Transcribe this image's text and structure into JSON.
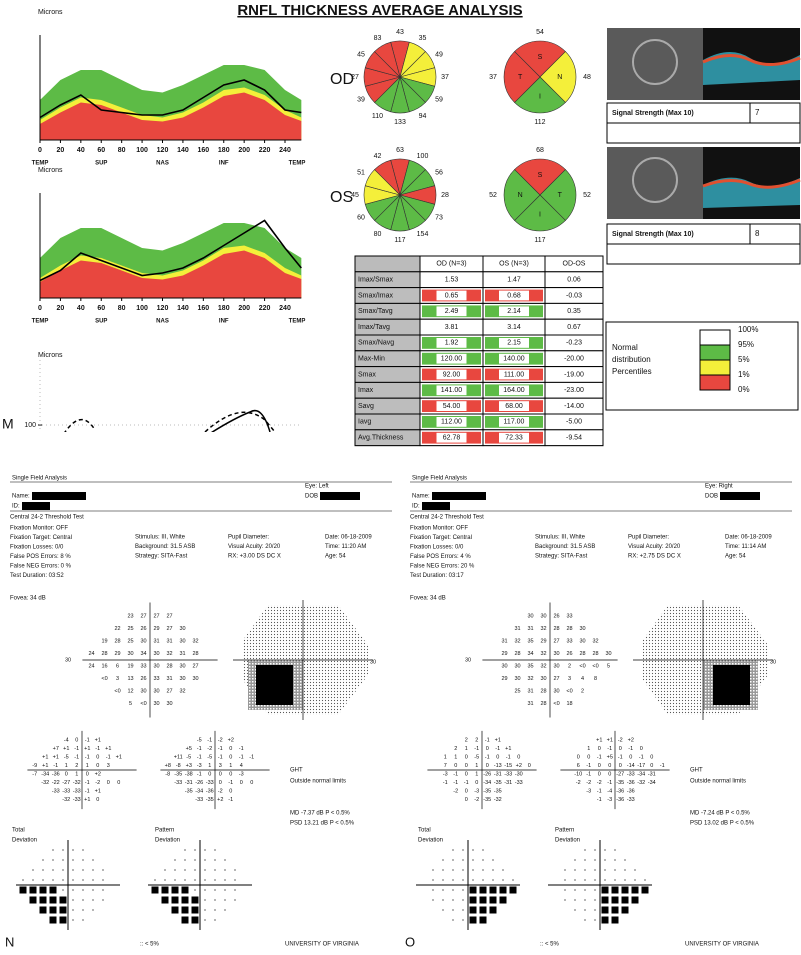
{
  "panel_m": {
    "label": "M",
    "title": "RNFL THICKNESS AVERAGE ANALYSIS",
    "graphs": [
      {
        "type": "area-line",
        "y_label": "Microns",
        "ylim": [
          0,
          200
        ],
        "xlim": [
          0,
          256
        ],
        "xticks": [
          0,
          20,
          40,
          60,
          80,
          100,
          120,
          140,
          160,
          180,
          200,
          220,
          240
        ],
        "sector_labels": [
          "TEMP",
          "SUP",
          "NAS",
          "INF",
          "TEMP"
        ],
        "x": [
          0,
          20,
          40,
          60,
          80,
          100,
          120,
          140,
          160,
          180,
          200,
          220,
          240,
          256
        ],
        "bands": [
          {
            "color": "#5dbb46",
            "values": [
              80,
              120,
              140,
              140,
              120,
              100,
              95,
              110,
              130,
              150,
              150,
              140,
              100,
              80
            ]
          },
          {
            "color": "#f4ef3a",
            "values": [
              40,
              65,
              85,
              80,
              65,
              50,
              45,
              55,
              75,
              100,
              105,
              90,
              60,
              45
            ]
          },
          {
            "color": "#e8473f",
            "values": [
              32,
              55,
              75,
              70,
              55,
              40,
              37,
              45,
              65,
              88,
              95,
              80,
              50,
              38
            ]
          }
        ],
        "series": [
          {
            "color": "#000000",
            "values": [
              45,
              70,
              90,
              60,
              55,
              50,
              50,
              60,
              85,
              110,
              120,
              100,
              60,
              55
            ]
          }
        ]
      },
      {
        "type": "area-line",
        "y_label": "Microns",
        "ylim": [
          0,
          200
        ],
        "xlim": [
          0,
          256
        ],
        "xticks": [
          0,
          20,
          40,
          60,
          80,
          100,
          120,
          140,
          160,
          180,
          200,
          220,
          240
        ],
        "sector_labels": [
          "TEMP",
          "SUP",
          "NAS",
          "INF",
          "TEMP"
        ],
        "x": [
          0,
          20,
          40,
          60,
          80,
          100,
          120,
          140,
          160,
          180,
          200,
          220,
          240,
          256
        ],
        "bands": [
          {
            "color": "#5dbb46",
            "values": [
              80,
              120,
              140,
              140,
              120,
              100,
              95,
              110,
              130,
              150,
              150,
              140,
              100,
              80
            ]
          },
          {
            "color": "#f4ef3a",
            "values": [
              40,
              65,
              85,
              80,
              65,
              50,
              45,
              55,
              75,
              100,
              105,
              90,
              60,
              45
            ]
          },
          {
            "color": "#e8473f",
            "values": [
              32,
              55,
              75,
              70,
              55,
              40,
              37,
              45,
              65,
              88,
              95,
              80,
              50,
              38
            ]
          }
        ],
        "series": [
          {
            "color": "#000000",
            "values": [
              35,
              55,
              90,
              75,
              60,
              45,
              50,
              60,
              80,
              105,
              130,
              155,
              100,
              60
            ]
          }
        ]
      },
      {
        "type": "partial",
        "y_label": "Microns",
        "yticks": [
          100
        ]
      }
    ],
    "eyes": [
      {
        "label": "OD",
        "clock": [
          43,
          35,
          49,
          37,
          59,
          94,
          133,
          110,
          39,
          27,
          45,
          83
        ],
        "clock_colors": [
          "#e8473f",
          "#f4ef3a",
          "#f4ef3a",
          "#f4ef3a",
          "#5dbb46",
          "#5dbb46",
          "#5dbb46",
          "#5dbb46",
          "#e8473f",
          "#e8473f",
          "#e8473f",
          "#e8473f"
        ],
        "quadrants": [
          {
            "name": "S",
            "value": 54,
            "color": "#e8473f"
          },
          {
            "name": "N",
            "value": 48,
            "color": "#f4ef3a"
          },
          {
            "name": "I",
            "value": 112,
            "color": "#5dbb46"
          },
          {
            "name": "T",
            "value": 37,
            "color": "#e8473f"
          }
        ],
        "signal": {
          "label": "Signal Strength (Max 10)",
          "value": 7
        }
      },
      {
        "label": "OS",
        "clock": [
          63,
          100,
          56,
          28,
          73,
          154,
          117,
          80,
          60,
          45,
          51,
          42
        ],
        "clock_colors": [
          "#e8473f",
          "#5dbb46",
          "#5dbb46",
          "#e8473f",
          "#5dbb46",
          "#5dbb46",
          "#5dbb46",
          "#5dbb46",
          "#5dbb46",
          "#f4ef3a",
          "#f4ef3a",
          "#e8473f"
        ],
        "quadrants": [
          {
            "name": "S",
            "value": 68,
            "color": "#e8473f"
          },
          {
            "name": "T",
            "value": 52,
            "color": "#5dbb46"
          },
          {
            "name": "I",
            "value": 117,
            "color": "#5dbb46"
          },
          {
            "name": "N",
            "value": 52,
            "color": "#5dbb46"
          }
        ],
        "signal": {
          "label": "Signal Strength (Max 10)",
          "value": 8
        }
      }
    ],
    "table": {
      "header": [
        "OD (N=3)",
        "OS (N=3)",
        "OD-OS"
      ],
      "rows": [
        {
          "label": "Imax/Smax",
          "cells": [
            "1.53",
            "1.47",
            "0.06"
          ],
          "colors": [
            "#ffffff",
            "#ffffff",
            "#ffffff"
          ]
        },
        {
          "label": "Smax/Imax",
          "cells": [
            "0.65",
            "0.68",
            "-0.03"
          ],
          "colors": [
            "#e8473f",
            "#e8473f",
            "#ffffff"
          ]
        },
        {
          "label": "Smax/Tavg",
          "cells": [
            "2.49",
            "2.14",
            "0.35"
          ],
          "colors": [
            "#5dbb46",
            "#5dbb46",
            "#ffffff"
          ]
        },
        {
          "label": "Imax/Tavg",
          "cells": [
            "3.81",
            "3.14",
            "0.67"
          ],
          "colors": [
            "#ffffff",
            "#ffffff",
            "#ffffff"
          ]
        },
        {
          "label": "Smax/Navg",
          "cells": [
            "1.92",
            "2.15",
            "-0.23"
          ],
          "colors": [
            "#5dbb46",
            "#5dbb46",
            "#ffffff"
          ]
        },
        {
          "label": "Max-Min",
          "cells": [
            "120.00",
            "140.00",
            "-20.00"
          ],
          "colors": [
            "#5dbb46",
            "#5dbb46",
            "#ffffff"
          ]
        },
        {
          "label": "Smax",
          "cells": [
            "92.00",
            "111.00",
            "-19.00"
          ],
          "colors": [
            "#e8473f",
            "#e8473f",
            "#ffffff"
          ]
        },
        {
          "label": "Imax",
          "cells": [
            "141.00",
            "164.00",
            "-23.00"
          ],
          "colors": [
            "#5dbb46",
            "#5dbb46",
            "#ffffff"
          ]
        },
        {
          "label": "Savg",
          "cells": [
            "54.00",
            "68.00",
            "-14.00"
          ],
          "colors": [
            "#e8473f",
            "#e8473f",
            "#ffffff"
          ]
        },
        {
          "label": "Iavg",
          "cells": [
            "112.00",
            "117.00",
            "-5.00"
          ],
          "colors": [
            "#5dbb46",
            "#5dbb46",
            "#ffffff"
          ]
        },
        {
          "label": "Avg.Thickness",
          "cells": [
            "62.78",
            "72.33",
            "-9.54"
          ],
          "colors": [
            "#e8473f",
            "#e8473f",
            "#ffffff"
          ]
        }
      ]
    },
    "legend": {
      "title": [
        "Normal",
        "distribution",
        "Percentiles"
      ],
      "items": [
        {
          "label": "100%",
          "color": "#ffffff"
        },
        {
          "label": "95%",
          "color": "#5dbb46"
        },
        {
          "label": "5%",
          "color": "#f4ef3a"
        },
        {
          "label": "1%",
          "color": "#e8473f"
        },
        {
          "label": "0%",
          "color": null
        }
      ]
    }
  },
  "panels": [
    {
      "label": "N",
      "title": "Single Field Analysis",
      "eye": "Eye: Left",
      "name": "Name:",
      "id": "ID:",
      "dob": "DOB",
      "test": "Central 24-2 Threshold Test",
      "left_info": [
        "Fixation Monitor: OFF",
        "Fixation Target: Central",
        "Fixation Losses: 0/0",
        "False POS Errors:  8 %",
        "False NEG Errors:  0 %",
        "Test Duration: 03:52"
      ],
      "fovea": "Fovea: 34 dB",
      "mid_info": [
        "Stimulus: III, White",
        "Background: 31.5 ASB",
        "Strategy: SITA-Fast"
      ],
      "pupil_info": [
        "Pupil Diameter:",
        "Visual Acuity: 20/20",
        "RX: +3.00 DS    DC  X"
      ],
      "date_info": [
        "Date: 06-18-2009",
        "Time: 11:20 AM",
        "Age: 54"
      ],
      "axis_label": "30",
      "threshold": [
        [
          "23",
          "27",
          "27",
          "27"
        ],
        [
          "22",
          "25",
          "26",
          "29",
          "27",
          "30"
        ],
        [
          "19",
          "28",
          "25",
          "30",
          "31",
          "31",
          "30",
          "32"
        ],
        [
          "24",
          "28",
          "29",
          "30",
          "34",
          "30",
          "32",
          "31",
          "28"
        ],
        [
          "24",
          "16",
          "6",
          "19",
          "33",
          "30",
          "28",
          "30",
          "27"
        ],
        [
          "<0",
          "3",
          "13",
          "26",
          "33",
          "31",
          "30",
          "30"
        ],
        [
          "<0",
          "12",
          "30",
          "30",
          "27",
          "32"
        ],
        [
          "5",
          "<0",
          "30",
          "30"
        ]
      ],
      "total_deviation": {
        "label": [
          "Total",
          "Deviation"
        ],
        "rows": [
          [
            "-4",
            "0",
            "-1",
            "+1"
          ],
          [
            "+7",
            "+1",
            "-1",
            "+1",
            "-1",
            "+1"
          ],
          [
            "+1",
            "+1",
            "-5",
            "-1",
            "-1",
            "0",
            "-1",
            "+1"
          ],
          [
            "-9",
            "+1",
            "-1",
            "1",
            "2",
            "1",
            "0",
            "3"
          ],
          [
            "-7",
            "-34",
            "-36",
            "0",
            "1",
            "0",
            "+2"
          ],
          [
            "-32",
            "-22",
            "-27",
            "-32",
            "-1",
            "-2",
            "0",
            "0"
          ],
          [
            "-33",
            "-33",
            "-33",
            "-1",
            "+1"
          ],
          [
            "-32",
            "-33",
            "+1",
            "0"
          ]
        ]
      },
      "pattern_deviation": {
        "label": [
          "Pattern",
          "Deviation"
        ],
        "rows": [
          [
            "-5",
            "-1",
            "-2",
            "+2"
          ],
          [
            "+5",
            "-1",
            "-2",
            "-1",
            "0",
            "-1"
          ],
          [
            "+11",
            "-5",
            "-1",
            "-5",
            "-1",
            "0",
            "-1",
            "-1"
          ],
          [
            "+8",
            "-8",
            "+3",
            "-3",
            "1",
            "3",
            "1",
            "4"
          ],
          [
            "-8",
            "-35",
            "-38",
            "-1",
            "0",
            "0",
            "0",
            "-3"
          ],
          [
            "-33",
            "-31",
            "-26",
            "-33",
            "0",
            "-1",
            "0",
            "0"
          ],
          [
            "-35",
            "-34",
            "-36",
            "-2",
            "0"
          ],
          [
            "-33",
            "-35",
            "+2",
            "-1"
          ]
        ]
      },
      "ght": [
        "GHT",
        "Outside normal limits"
      ],
      "md": "MD    -7.37 dB  P < 0.5%",
      "psd": "PSD   13.21 dB  P < 0.5%",
      "legend": ":: < 5%",
      "institution": "UNIVERSITY OF VIRGINIA"
    },
    {
      "label": "O",
      "title": "Single Field Analysis",
      "eye": "Eye: Right",
      "name": "Name:",
      "id": "ID:",
      "dob": "DOB",
      "test": "Central 24-2 Threshold Test",
      "left_info": [
        "Fixation Monitor: OFF",
        "Fixation Target: Central",
        "Fixation Losses: 0/0",
        "False POS Errors:  4 %",
        "False NEG Errors: 20 %",
        "Test Duration: 03:17"
      ],
      "fovea": "Fovea: 34 dB",
      "mid_info": [
        "Stimulus: III, White",
        "Background: 31.5 ASB",
        "Strategy: SITA-Fast"
      ],
      "pupil_info": [
        "Pupil Diameter:",
        "Visual Acuity: 20/20",
        "RX: +2.75 DS    DC  X"
      ],
      "date_info": [
        "Date: 06-18-2009",
        "Time: 11:14 AM",
        "Age: 54"
      ],
      "axis_label": "30",
      "threshold": [
        [
          "30",
          "30",
          "26",
          "33"
        ],
        [
          "31",
          "31",
          "32",
          "28",
          "28",
          "30"
        ],
        [
          "31",
          "32",
          "35",
          "29",
          "27",
          "33",
          "30",
          "32"
        ],
        [
          "29",
          "28",
          "34",
          "32",
          "30",
          "26",
          "28",
          "28",
          "30"
        ],
        [
          "30",
          "30",
          "35",
          "32",
          "30",
          "2",
          "<0",
          "<0",
          "5"
        ],
        [
          "29",
          "30",
          "32",
          "30",
          "27",
          "3",
          "4",
          "8"
        ],
        [
          "25",
          "31",
          "28",
          "30",
          "<0",
          "2"
        ],
        [
          "31",
          "28",
          "<0",
          "18"
        ]
      ],
      "total_deviation": {
        "label": [
          "Total",
          "Deviation"
        ],
        "rows": [
          [
            "2",
            "2",
            "-1",
            "+1"
          ],
          [
            "2",
            "1",
            "-1",
            "0",
            "-1",
            "+1"
          ],
          [
            "1",
            "1",
            "0",
            "-5",
            "-1",
            "0",
            "-1",
            "0"
          ],
          [
            "7",
            "0",
            "0",
            "1",
            "0",
            "-13",
            "-15",
            "+2",
            "0"
          ],
          [
            "-3",
            "-1",
            "0",
            "1",
            "-26",
            "-31",
            "-33",
            "-30"
          ],
          [
            "-1",
            "-1",
            "-1",
            "0",
            "-34",
            "-35",
            "-31",
            "-33"
          ],
          [
            "-2",
            "0",
            "-3",
            "-35",
            "-35"
          ],
          [
            "0",
            "-2",
            "-35",
            "-32"
          ]
        ]
      },
      "pattern_deviation": {
        "label": [
          "Pattern",
          "Deviation"
        ],
        "rows": [
          [
            "+1",
            "+1",
            "-2",
            "+2"
          ],
          [
            "1",
            "0",
            "-1",
            "0",
            "-1",
            "0"
          ],
          [
            "0",
            "0",
            "-1",
            "+5",
            "-1",
            "0",
            "-1",
            "0"
          ],
          [
            "6",
            "-1",
            "0",
            "0",
            "0",
            "-14",
            "-17",
            "0",
            "-1"
          ],
          [
            "-10",
            "-1",
            "0",
            "0",
            "-27",
            "-33",
            "-34",
            "-31"
          ],
          [
            "-2",
            "-2",
            "-2",
            "-1",
            "-35",
            "-36",
            "-32",
            "-34"
          ],
          [
            "-3",
            "-1",
            "-4",
            "-36",
            "-36"
          ],
          [
            "-1",
            "-3",
            "-36",
            "-33"
          ]
        ]
      },
      "ght": [
        "GHT",
        "Outside normal limits"
      ],
      "md": "MD    -7.24 dB  P < 0.5%",
      "psd": "PSD   13.02 dB  P < 0.5%",
      "legend": ":: < 5%",
      "institution": "UNIVERSITY OF VIRGINIA"
    }
  ]
}
